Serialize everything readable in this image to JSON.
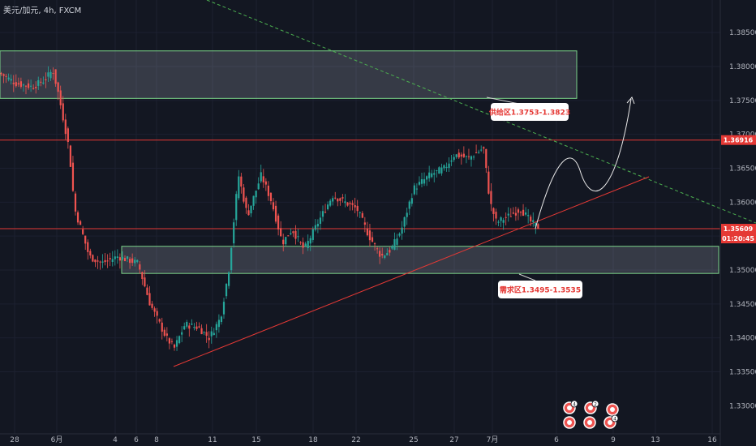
{
  "header": {
    "symbol_title": "美元/加元, 4h, FXCM"
  },
  "chart_data": {
    "type": "candlestick",
    "title": "美元/加元, 4h, FXCM",
    "x_ticks": [
      "28",
      "6月",
      "4",
      "6",
      "8",
      "11",
      "15",
      "18",
      "22",
      "25",
      "27",
      "7月",
      "6",
      "9",
      "13",
      "16"
    ],
    "y_ticks": [
      1.335,
      1.34,
      1.345,
      1.35,
      1.355,
      1.36,
      1.365,
      1.37,
      1.375,
      1.38,
      1.385
    ],
    "y_tick_labels": [
      "1.33500",
      "1.34000",
      "1.34500",
      "1.35000",
      "1.35500",
      "1.36000",
      "1.36500",
      "1.37000",
      "1.37500",
      "1.38000",
      "1.38500"
    ],
    "y_bottom_label": "1.33000",
    "ylim": [
      1.328,
      1.388
    ],
    "price_levels": [
      {
        "value": 1.36916,
        "label": "1.36916",
        "color": "#e53935"
      },
      {
        "value": 1.35609,
        "label": "1.35609",
        "color": "#e53935",
        "sublabel": "01:20:45"
      }
    ],
    "zones": [
      {
        "label": "供给区1.3753-1.3823",
        "low": 1.3753,
        "high": 1.3823
      },
      {
        "label": "需求区1.3495-1.3535",
        "low": 1.3495,
        "high": 1.3535
      }
    ],
    "colors": {
      "up": "#26a69a",
      "down": "#ef5350",
      "background": "#131722"
    }
  },
  "events": [
    {
      "name": "event-badge-1",
      "count": "4"
    },
    {
      "name": "event-badge-2",
      "count": "2"
    },
    {
      "name": "event-badge-3",
      "count": ""
    },
    {
      "name": "event-badge-4",
      "count": ""
    },
    {
      "name": "event-badge-5",
      "count": ""
    },
    {
      "name": "event-badge-6",
      "count": "4"
    }
  ]
}
